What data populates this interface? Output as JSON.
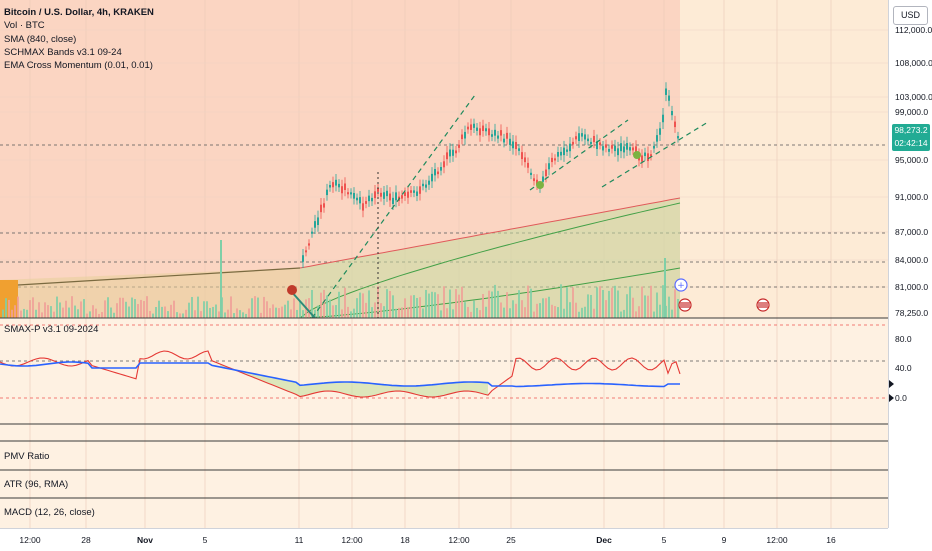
{
  "legend": {
    "title": "Bitcoin / U.S. Dollar, 4h, KRAKEN",
    "lines": [
      "Vol · BTC",
      "SMA (840, close)",
      "SCHMAX Bands v3.1 09-24",
      "EMA Cross Momentum (0.01, 0.01)"
    ]
  },
  "currency_button": "USD",
  "last_price": {
    "value": "98,273.2",
    "countdown": "02:42:14"
  },
  "price_axis_labels": [
    "112,000.0",
    "108,000.0",
    "103,000.0",
    "99,000.0",
    "95,000.0",
    "91,000.0",
    "87,000.0",
    "84,000.0",
    "81,000.0",
    "78,250.0"
  ],
  "osc_axis_labels": [
    "80.0",
    "40.0",
    "0.0"
  ],
  "panes": {
    "oscillator": "SMAX-P v3.1 09-2024",
    "pmv": "PMV Ratio",
    "atr": "ATR (96, RMA)",
    "macd": "MACD (12, 26, close)"
  },
  "time_axis": [
    {
      "label": "12:00",
      "bold": false
    },
    {
      "label": "28",
      "bold": false
    },
    {
      "label": "Nov",
      "bold": true
    },
    {
      "label": "5",
      "bold": false
    },
    {
      "label": "11",
      "bold": false
    },
    {
      "label": "12:00",
      "bold": false
    },
    {
      "label": "18",
      "bold": false
    },
    {
      "label": "12:00",
      "bold": false
    },
    {
      "label": "25",
      "bold": false
    },
    {
      "label": "Dec",
      "bold": true
    },
    {
      "label": "5",
      "bold": false
    },
    {
      "label": "9",
      "bold": false
    },
    {
      "label": "12:00",
      "bold": false
    },
    {
      "label": "16",
      "bold": false
    }
  ],
  "colors": {
    "bg_left": "#fbd9c8",
    "bg_right": "#fdebd5",
    "up": "#26a69a",
    "down": "#ef5350",
    "sma": "#ef5350",
    "green_line": "#4caf50",
    "blue_line": "#2962ff",
    "tag": "#22ab94"
  }
}
